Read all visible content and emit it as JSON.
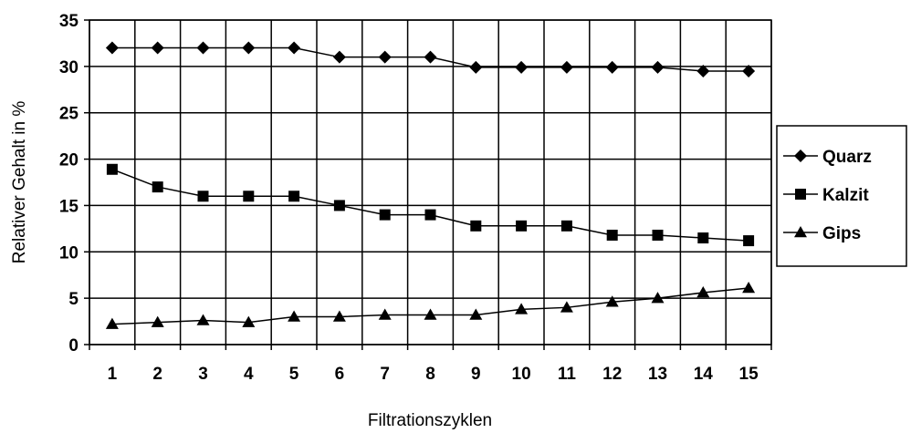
{
  "chart_data": {
    "type": "line",
    "title": "",
    "xlabel": "Filtrationszyklen",
    "ylabel": "Relativer Gehalt in %",
    "ylim": [
      0,
      35
    ],
    "yticks": [
      "0",
      "5",
      "10",
      "15",
      "20",
      "25",
      "30",
      "35"
    ],
    "categories": [
      "1",
      "2",
      "3",
      "4",
      "5",
      "6",
      "7",
      "8",
      "9",
      "10",
      "11",
      "12",
      "13",
      "14",
      "15"
    ],
    "grid": true,
    "legend_position": "right",
    "series": [
      {
        "name": "Quarz",
        "marker": "diamond",
        "color": "#000000",
        "values": [
          32,
          32,
          32,
          32,
          32,
          31,
          31,
          31,
          29.9,
          29.9,
          29.9,
          29.9,
          29.9,
          29.5,
          29.5
        ]
      },
      {
        "name": "Kalzit",
        "marker": "square",
        "color": "#000000",
        "values": [
          18.9,
          17,
          16,
          16,
          16,
          15,
          14,
          14,
          12.8,
          12.8,
          12.8,
          11.8,
          11.8,
          11.5,
          11.2
        ]
      },
      {
        "name": "Gips",
        "marker": "triangle",
        "color": "#000000",
        "values": [
          2.2,
          2.4,
          2.6,
          2.4,
          3.0,
          3.0,
          3.2,
          3.2,
          3.2,
          3.8,
          4.0,
          4.6,
          5.0,
          5.6,
          6.1
        ]
      }
    ]
  }
}
